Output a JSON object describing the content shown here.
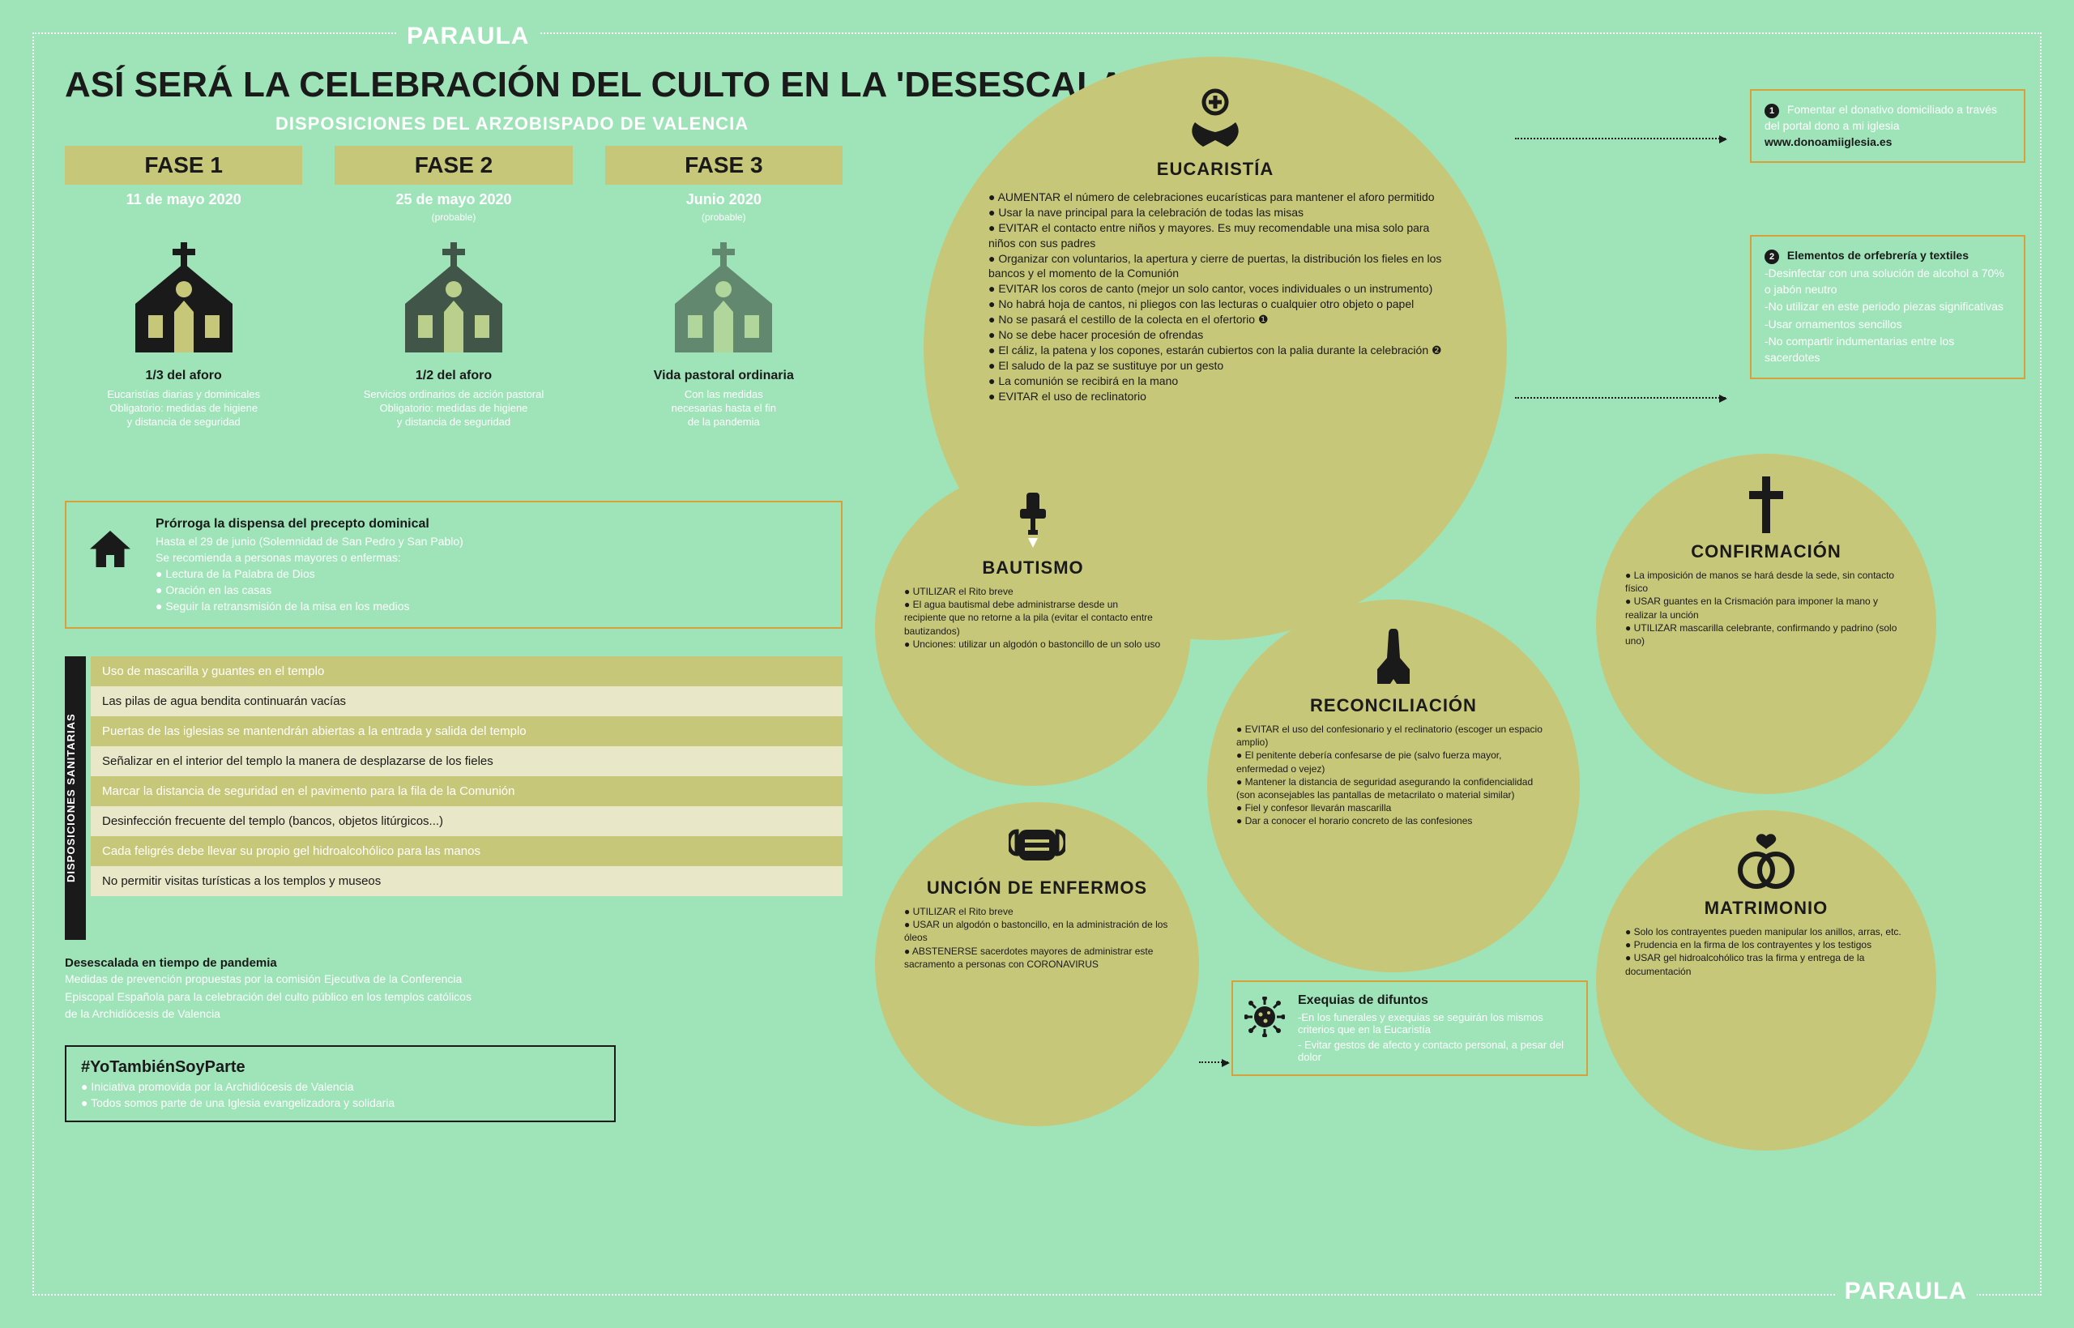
{
  "colors": {
    "bg": "#9ee4b8",
    "olive": "#c7c77a",
    "cream": "#e8e8c8",
    "orange": "#d6a03a",
    "black": "#1a1a1a",
    "white": "#ffffff"
  },
  "brand": "PARAULA",
  "title": "ASÍ SERÁ LA CELEBRACIÓN DEL CULTO EN LA 'DESESCALADA'",
  "subtitle": "DISPOSICIONES DEL ARZOBISPADO DE VALENCIA",
  "phases": [
    {
      "label": "FASE 1",
      "date": "11 de mayo 2020",
      "note": "",
      "cap": "1/3 del aforo",
      "desc": "Eucaristías diarias y dominicales\nObligatorio: medidas de higiene\ny distancia de seguridad",
      "opacity": 1.0
    },
    {
      "label": "FASE 2",
      "date": "25 de mayo 2020",
      "note": "(probable)",
      "cap": "1/2 del aforo",
      "desc": "Servicios ordinarios de acción pastoral\nObligatorio: medidas de higiene\ny distancia de seguridad",
      "opacity": 0.7
    },
    {
      "label": "FASE 3",
      "date": "Junio 2020",
      "note": "(probable)",
      "cap": "Vida pastoral ordinaria",
      "desc": "Con las medidas\nnecesarias hasta el fin\nde la pandemia",
      "opacity": 0.45
    }
  ],
  "dispensa": {
    "title": "Prórroga la dispensa del precepto dominical",
    "lines": [
      "Hasta el 29 de junio (Solemnidad de San Pedro y San Pablo)",
      "Se recomienda a personas mayores o enfermas:",
      "● Lectura de la Palabra de Dios",
      "● Oración en las casas",
      "● Seguir la retransmisión de la misa en los medios"
    ]
  },
  "disposiciones_label": "DISPOSICIONES SANITARIAS",
  "rows": [
    "Uso de mascarilla y guantes en el templo",
    "Las pilas de agua bendita continuarán vacías",
    "Puertas de las iglesias se mantendrán abiertas a la entrada y salida del templo",
    "Señalizar en el interior del templo la manera de desplazarse de los fieles",
    "Marcar la distancia de seguridad en el pavimento para la fila de la Comunión",
    "Desinfección frecuente del templo (bancos, objetos litúrgicos...)",
    "Cada feligrés debe llevar su propio gel hidroalcohólico para las manos",
    "No permitir visitas turísticas a los templos y museos"
  ],
  "footnote": {
    "title": "Desescalada en tiempo de pandemia",
    "lines": [
      "Medidas de prevención propuestas por la comisión Ejecutiva de la Conferencia",
      "Episcopal Española para la celebración del culto público en los templos católicos",
      "de la Archidiócesis de Valencia"
    ]
  },
  "hashtag": {
    "title": "#YoTambiénSoyParte",
    "lines": [
      "● Iniciativa promovida por la Archidiócesis de Valencia",
      "● Todos somos parte de una Iglesia evangelizadora y solidaria"
    ]
  },
  "eucaristia": {
    "title": "EUCARISTÍA",
    "items": [
      "● AUMENTAR el número de celebraciones eucarísticas para mantener el aforo permitido",
      "● Usar la nave principal para la celebración de todas las misas",
      "● EVITAR el contacto entre niños y mayores. Es muy recomendable una misa solo para niños con sus padres",
      "● Organizar con voluntarios, la apertura y cierre de puertas, la distribución los fieles en los bancos y el momento de la Comunión",
      "● EVITAR los coros de canto (mejor un solo cantor, voces individuales o un instrumento)",
      "● No habrá hoja de cantos, ni pliegos con las lecturas o cualquier otro objeto o papel",
      "● No se pasará el cestillo de la colecta en el ofertorio ❶",
      "● No se debe hacer procesión de ofrendas",
      "● El cáliz, la patena y los copones, estarán cubiertos con la palia durante la celebración ❷",
      "● El saludo de la paz se sustituye por un gesto",
      "● La comunión se recibirá en la mano",
      "● EVITAR el uso de reclinatorio"
    ]
  },
  "bautismo": {
    "title": "BAUTISMO",
    "items": [
      "● UTILIZAR el Rito breve",
      "● El agua bautismal debe administrarse desde un recipiente que no retorne a la pila (evitar el contacto entre bautizandos)",
      "● Unciones: utilizar un algodón o bastoncillo de un solo uso"
    ]
  },
  "reconciliacion": {
    "title": "RECONCILIACIÓN",
    "items": [
      "● EVITAR el uso del confesionario y el reclinatorio (escoger un espacio amplio)",
      "● El penitente debería confesarse de pie (salvo fuerza mayor, enfermedad o vejez)",
      "● Mantener la distancia de seguridad asegurando la confidencialidad (son aconsejables las pantallas de metacrilato o material similar)",
      "● Fiel y confesor llevarán mascarilla",
      "● Dar a conocer el horario concreto de las confesiones"
    ]
  },
  "confirmacion": {
    "title": "CONFIRMACIÓN",
    "items": [
      "● La imposición de manos se hará desde la sede, sin contacto físico",
      "● USAR guantes en la Crismación para imponer la mano y realizar la unción",
      "● UTILIZAR mascarilla celebrante, confirmando y padrino (solo uno)"
    ]
  },
  "uncion": {
    "title": "UNCIÓN DE ENFERMOS",
    "items": [
      "● UTILIZAR el Rito breve",
      "● USAR un algodón o bastoncillo, en la administración de los óleos",
      "● ABSTENERSE sacerdotes mayores de administrar este sacramento a personas con CORONAVIRUS"
    ]
  },
  "matrimonio": {
    "title": "MATRIMONIO",
    "items": [
      "● Solo los contrayentes pueden manipular los anillos, arras, etc.",
      "● Prudencia en la firma de los contrayentes y los testigos",
      "● USAR gel hidroalcohólico tras la firma y entrega de la documentación"
    ]
  },
  "sidebox1": {
    "num": "❶",
    "head": "Fomentar el donativo domiciliado a través del portal dono a mi iglesia",
    "link": "www.donoamiiglesia.es"
  },
  "sidebox2": {
    "num": "❷",
    "head": "Elementos de orfebrería y textiles",
    "items": [
      "-Desinfectar con una solución de alcohol a 70% o jabón neutro",
      "-No utilizar en este periodo piezas significativas",
      "-Usar ornamentos sencillos",
      "-No compartir indumentarias entre los sacerdotes"
    ]
  },
  "exequias": {
    "title": "Exequias de difuntos",
    "lines": [
      "-En los funerales y exequias se seguirán los mismos criterios que en la Eucaristía",
      "- Evitar gestos de afecto y contacto personal, a pesar del dolor"
    ]
  }
}
